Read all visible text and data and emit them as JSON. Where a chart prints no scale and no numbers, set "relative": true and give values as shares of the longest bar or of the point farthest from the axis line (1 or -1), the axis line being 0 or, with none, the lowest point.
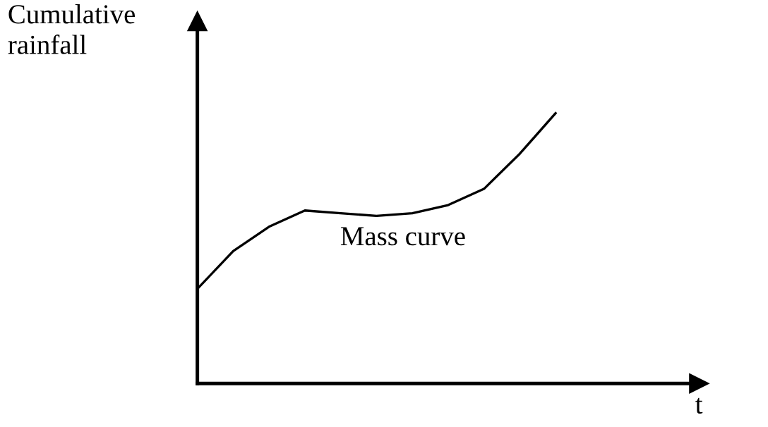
{
  "chart_data": {
    "type": "line",
    "relative": true,
    "ylabel": "Cumulative\nrainfall",
    "xlabel": "t",
    "annotations": [
      "Mass curve"
    ],
    "categories": [
      null,
      null,
      null,
      null,
      null,
      null,
      null,
      null,
      null,
      null,
      null,
      null,
      null,
      null,
      null
    ],
    "series": [
      {
        "color": "#000000",
        "values": [
          0.35,
          0.49,
          0.58,
          0.64,
          0.63,
          0.62,
          0.63,
          0.66,
          0.72,
          0.85,
          1.0,
          null,
          null,
          null,
          null
        ]
      }
    ],
    "marker": "none",
    "line_style": "solid"
  }
}
